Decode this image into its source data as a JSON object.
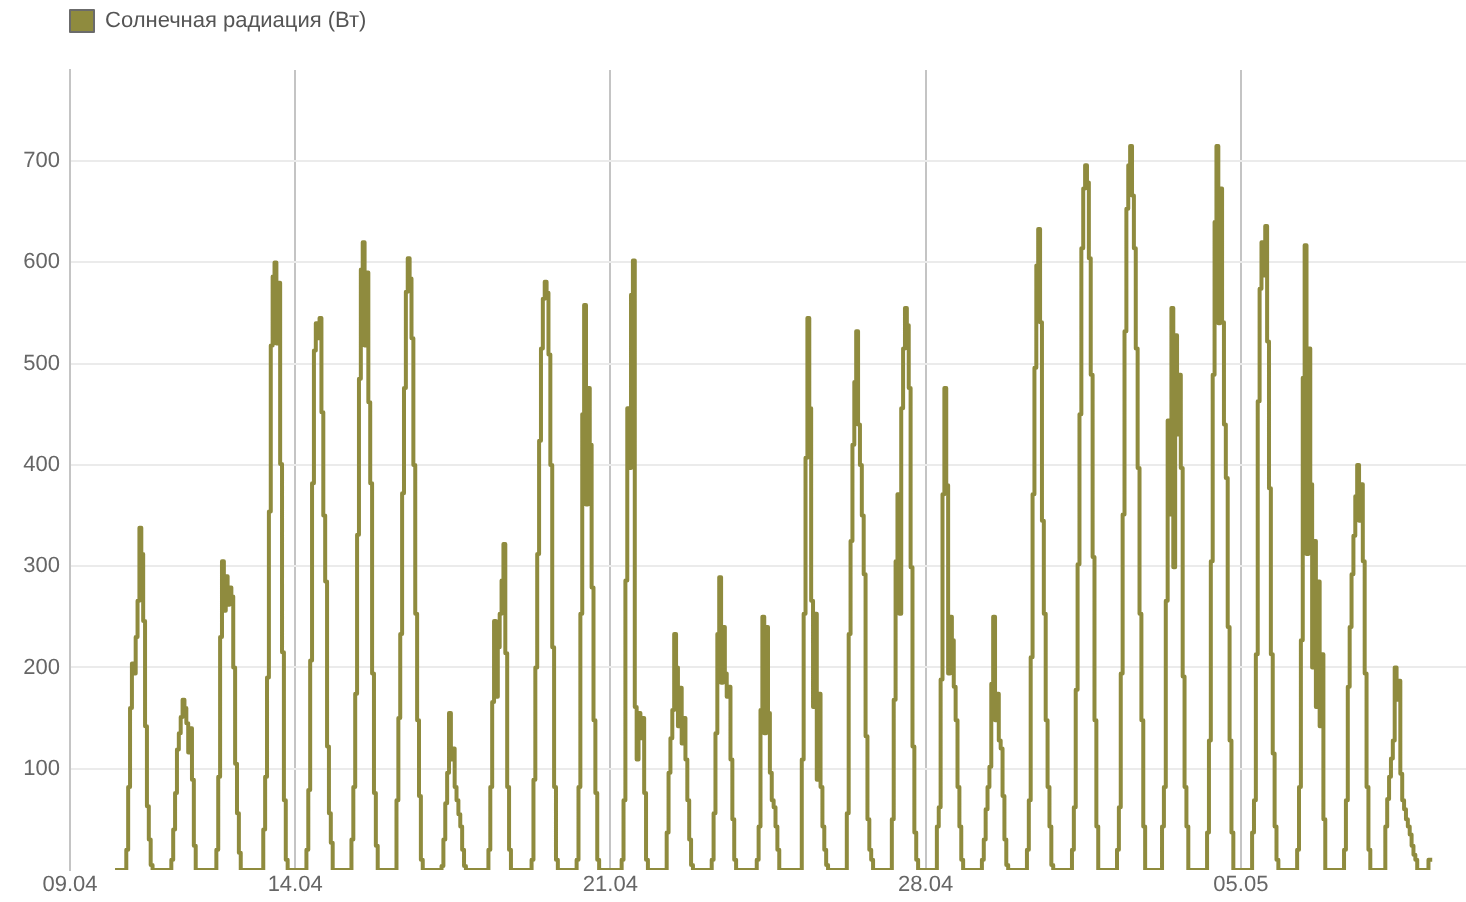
{
  "chart_data": {
    "type": "step",
    "legend": "top left",
    "grid": true,
    "xlim": [
      "--04-09",
      "--05-10"
    ],
    "xticks": [
      {
        "value": "--04-09",
        "label": "09.04"
      },
      {
        "value": "--04-14",
        "label": "14.04"
      },
      {
        "value": "--04-21",
        "label": "21.04"
      },
      {
        "value": "--04-28",
        "label": "28.04"
      },
      {
        "value": "--05-05",
        "label": "05.05"
      }
    ],
    "ylim": [
      0,
      790
    ],
    "yticks": [
      100,
      200,
      300,
      400,
      500,
      600,
      700
    ],
    "series": [
      {
        "name": "Солнечная радиация (Вт)",
        "color": "#8f8b3e",
        "x": [
          "--04-10T00:00",
          "--04-10T05:00",
          "--04-10T06:00",
          "--04-10T07:00",
          "--04-10T08:00",
          "--04-10T09:00",
          "--04-10T10:00",
          "--04-10T11:00",
          "--04-10T12:00",
          "--04-10T13:00",
          "--04-10T14:00",
          "--04-10T15:00",
          "--04-10T16:00",
          "--04-10T17:00",
          "--04-10T18:00",
          "--04-10T19:00",
          "--04-10T20:00",
          "--04-11T05:00",
          "--04-11T06:00",
          "--04-11T07:00",
          "--04-11T08:00",
          "--04-11T09:00",
          "--04-11T10:00",
          "--04-11T11:00",
          "--04-11T12:00",
          "--04-11T13:00",
          "--04-11T14:00",
          "--04-11T15:00",
          "--04-11T16:00",
          "--04-11T17:00",
          "--04-11T18:00",
          "--04-11T19:00",
          "--04-11T20:00",
          "--04-12T05:00",
          "--04-12T06:00",
          "--04-12T07:00",
          "--04-12T08:00",
          "--04-12T09:00",
          "--04-12T10:00",
          "--04-12T11:00",
          "--04-12T12:00",
          "--04-12T13:00",
          "--04-12T14:00",
          "--04-12T15:00",
          "--04-12T16:00",
          "--04-12T17:00",
          "--04-12T18:00",
          "--04-12T19:00",
          "--04-12T20:00",
          "--04-13T05:00",
          "--04-13T06:00",
          "--04-13T07:00",
          "--04-13T08:00",
          "--04-13T09:00",
          "--04-13T10:00",
          "--04-13T11:00",
          "--04-13T12:00",
          "--04-13T13:00",
          "--04-13T14:00",
          "--04-13T15:00",
          "--04-13T16:00",
          "--04-13T17:00",
          "--04-13T18:00",
          "--04-13T19:00",
          "--04-13T20:00",
          "--04-14T05:00",
          "--04-14T06:00",
          "--04-14T07:00",
          "--04-14T08:00",
          "--04-14T09:00",
          "--04-14T10:00",
          "--04-14T11:00",
          "--04-14T12:00",
          "--04-14T13:00",
          "--04-14T14:00",
          "--04-14T15:00",
          "--04-14T16:00",
          "--04-14T17:00",
          "--04-14T18:00",
          "--04-14T19:00",
          "--04-14T20:00",
          "--04-15T05:00",
          "--04-15T06:00",
          "--04-15T07:00",
          "--04-15T08:00",
          "--04-15T09:00",
          "--04-15T10:00",
          "--04-15T11:00",
          "--04-15T12:00",
          "--04-15T13:00",
          "--04-15T14:00",
          "--04-15T15:00",
          "--04-15T16:00",
          "--04-15T17:00",
          "--04-15T18:00",
          "--04-15T19:00",
          "--04-15T20:00",
          "--04-16T05:00",
          "--04-16T06:00",
          "--04-16T07:00",
          "--04-16T08:00",
          "--04-16T09:00",
          "--04-16T10:00",
          "--04-16T11:00",
          "--04-16T12:00",
          "--04-16T13:00",
          "--04-16T14:00",
          "--04-16T15:00",
          "--04-16T16:00",
          "--04-16T17:00",
          "--04-16T18:00",
          "--04-16T19:00",
          "--04-16T20:00",
          "--04-17T05:00",
          "--04-17T06:00",
          "--04-17T07:00",
          "--04-17T08:00",
          "--04-17T09:00",
          "--04-17T10:00",
          "--04-17T11:00",
          "--04-17T12:00",
          "--04-17T13:00",
          "--04-17T14:00",
          "--04-17T15:00",
          "--04-17T16:00",
          "--04-17T17:00",
          "--04-17T18:00",
          "--04-17T19:00",
          "--04-17T20:00",
          "--04-18T05:00",
          "--04-18T06:00",
          "--04-18T07:00",
          "--04-18T08:00",
          "--04-18T09:00",
          "--04-18T10:00",
          "--04-18T11:00",
          "--04-18T12:00",
          "--04-18T13:00",
          "--04-18T14:00",
          "--04-18T15:00",
          "--04-18T16:00",
          "--04-18T17:00",
          "--04-18T18:00",
          "--04-18T19:00",
          "--04-18T20:00",
          "--04-19T05:00",
          "--04-19T06:00",
          "--04-19T07:00",
          "--04-19T08:00",
          "--04-19T09:00",
          "--04-19T10:00",
          "--04-19T11:00",
          "--04-19T12:00",
          "--04-19T13:00",
          "--04-19T14:00",
          "--04-19T15:00",
          "--04-19T16:00",
          "--04-19T17:00",
          "--04-19T18:00",
          "--04-19T19:00",
          "--04-19T20:00",
          "--04-20T05:00",
          "--04-20T06:00",
          "--04-20T07:00",
          "--04-20T08:00",
          "--04-20T09:00",
          "--04-20T10:00",
          "--04-20T11:00",
          "--04-20T12:00",
          "--04-20T13:00",
          "--04-20T14:00",
          "--04-20T15:00",
          "--04-20T16:00",
          "--04-20T17:00",
          "--04-20T18:00",
          "--04-20T19:00",
          "--04-20T20:00",
          "--04-21T05:00",
          "--04-21T06:00",
          "--04-21T07:00",
          "--04-21T08:00",
          "--04-21T09:00",
          "--04-21T10:00",
          "--04-21T11:00",
          "--04-21T12:00",
          "--04-21T13:00",
          "--04-21T14:00",
          "--04-21T15:00",
          "--04-21T16:00",
          "--04-21T17:00",
          "--04-21T18:00",
          "--04-21T19:00",
          "--04-21T20:00",
          "--04-22T05:00",
          "--04-22T06:00",
          "--04-22T07:00",
          "--04-22T08:00",
          "--04-22T09:00",
          "--04-22T10:00",
          "--04-22T11:00",
          "--04-22T12:00",
          "--04-22T13:00",
          "--04-22T14:00",
          "--04-22T15:00",
          "--04-22T16:00",
          "--04-22T17:00",
          "--04-22T18:00",
          "--04-22T19:00",
          "--04-22T20:00",
          "--04-23T05:00",
          "--04-23T06:00",
          "--04-23T07:00",
          "--04-23T08:00",
          "--04-23T09:00",
          "--04-23T10:00",
          "--04-23T11:00",
          "--04-23T12:00",
          "--04-23T13:00",
          "--04-23T14:00",
          "--04-23T15:00",
          "--04-23T16:00",
          "--04-23T17:00",
          "--04-23T18:00",
          "--04-23T19:00",
          "--04-23T20:00",
          "--04-24T05:00",
          "--04-24T06:00",
          "--04-24T07:00",
          "--04-24T08:00",
          "--04-24T09:00",
          "--04-24T10:00",
          "--04-24T11:00",
          "--04-24T12:00",
          "--04-24T13:00",
          "--04-24T14:00",
          "--04-24T15:00",
          "--04-24T16:00",
          "--04-24T17:00",
          "--04-24T18:00",
          "--04-24T19:00",
          "--04-24T20:00",
          "--04-25T05:00",
          "--04-25T06:00",
          "--04-25T07:00",
          "--04-25T08:00",
          "--04-25T09:00",
          "--04-25T10:00",
          "--04-25T11:00",
          "--04-25T12:00",
          "--04-25T13:00",
          "--04-25T14:00",
          "--04-25T15:00",
          "--04-25T16:00",
          "--04-25T17:00",
          "--04-25T18:00",
          "--04-25T19:00",
          "--04-25T20:00",
          "--04-26T05:00",
          "--04-26T06:00",
          "--04-26T07:00",
          "--04-26T08:00",
          "--04-26T09:00",
          "--04-26T10:00",
          "--04-26T11:00",
          "--04-26T12:00",
          "--04-26T13:00",
          "--04-26T14:00",
          "--04-26T15:00",
          "--04-26T16:00",
          "--04-26T17:00",
          "--04-26T18:00",
          "--04-26T19:00",
          "--04-26T20:00",
          "--04-27T05:00",
          "--04-27T06:00",
          "--04-27T07:00",
          "--04-27T08:00",
          "--04-27T09:00",
          "--04-27T10:00",
          "--04-27T11:00",
          "--04-27T12:00",
          "--04-27T13:00",
          "--04-27T14:00",
          "--04-27T15:00",
          "--04-27T16:00",
          "--04-27T17:00",
          "--04-27T18:00",
          "--04-27T19:00",
          "--04-27T20:00",
          "--04-28T05:00",
          "--04-28T06:00",
          "--04-28T07:00",
          "--04-28T08:00",
          "--04-28T09:00",
          "--04-28T10:00",
          "--04-28T11:00",
          "--04-28T12:00",
          "--04-28T13:00",
          "--04-28T14:00",
          "--04-28T15:00",
          "--04-28T16:00",
          "--04-28T17:00",
          "--04-28T18:00",
          "--04-28T19:00",
          "--04-28T20:00",
          "--04-29T05:00",
          "--04-29T06:00",
          "--04-29T07:00",
          "--04-29T08:00",
          "--04-29T09:00",
          "--04-29T10:00",
          "--04-29T11:00",
          "--04-29T12:00",
          "--04-29T13:00",
          "--04-29T14:00",
          "--04-29T15:00",
          "--04-29T16:00",
          "--04-29T17:00",
          "--04-29T18:00",
          "--04-29T19:00",
          "--04-29T20:00",
          "--04-30T05:00",
          "--04-30T06:00",
          "--04-30T07:00",
          "--04-30T08:00",
          "--04-30T09:00",
          "--04-30T10:00",
          "--04-30T11:00",
          "--04-30T12:00",
          "--04-30T13:00",
          "--04-30T14:00",
          "--04-30T15:00",
          "--04-30T16:00",
          "--04-30T17:00",
          "--04-30T18:00",
          "--04-30T19:00",
          "--04-30T20:00",
          "--05-01T05:00",
          "--05-01T06:00",
          "--05-01T07:00",
          "--05-01T08:00",
          "--05-01T09:00",
          "--05-01T10:00",
          "--05-01T11:00",
          "--05-01T12:00",
          "--05-01T13:00",
          "--05-01T14:00",
          "--05-01T15:00",
          "--05-01T16:00",
          "--05-01T17:00",
          "--05-01T18:00",
          "--05-01T19:00",
          "--05-01T20:00",
          "--05-02T05:00",
          "--05-02T06:00",
          "--05-02T07:00",
          "--05-02T08:00",
          "--05-02T09:00",
          "--05-02T10:00",
          "--05-02T11:00",
          "--05-02T12:00",
          "--05-02T13:00",
          "--05-02T14:00",
          "--05-02T15:00",
          "--05-02T16:00",
          "--05-02T17:00",
          "--05-02T18:00",
          "--05-02T19:00",
          "--05-02T20:00",
          "--05-02T21:00",
          "--05-03T05:00",
          "--05-03T06:00",
          "--05-03T07:00",
          "--05-03T08:00",
          "--05-03T09:00",
          "--05-03T10:00",
          "--05-03T11:00",
          "--05-03T12:00",
          "--05-03T13:00",
          "--05-03T14:00",
          "--05-03T15:00",
          "--05-03T16:00",
          "--05-03T17:00",
          "--05-03T18:00",
          "--05-03T19:00",
          "--05-03T20:00",
          "--05-04T05:00",
          "--05-04T06:00",
          "--05-04T07:00",
          "--05-04T08:00",
          "--05-04T09:00",
          "--05-04T10:00",
          "--05-04T11:00",
          "--05-04T12:00",
          "--05-04T13:00",
          "--05-04T14:00",
          "--05-04T15:00",
          "--05-04T16:00",
          "--05-04T17:00",
          "--05-04T18:00",
          "--05-04T19:00",
          "--05-04T20:00",
          "--05-05T05:00",
          "--05-05T06:00",
          "--05-05T07:00",
          "--05-05T08:00",
          "--05-05T09:00",
          "--05-05T10:00",
          "--05-05T11:00",
          "--05-05T12:00",
          "--05-05T13:00",
          "--05-05T14:00",
          "--05-05T15:00",
          "--05-05T16:00",
          "--05-05T17:00",
          "--05-05T18:00",
          "--05-05T19:00",
          "--05-05T20:00",
          "--05-06T05:00",
          "--05-06T06:00",
          "--05-06T07:00",
          "--05-06T08:00",
          "--05-06T09:00",
          "--05-06T10:00",
          "--05-06T11:00",
          "--05-06T12:00",
          "--05-06T13:00",
          "--05-06T14:00",
          "--05-06T15:00",
          "--05-06T16:00",
          "--05-06T17:00",
          "--05-06T18:00",
          "--05-06T19:00",
          "--05-06T20:00",
          "--05-06T21:00",
          "--05-07T05:00",
          "--05-07T06:00",
          "--05-07T07:00",
          "--05-07T08:00",
          "--05-07T09:00",
          "--05-07T10:00",
          "--05-07T11:00",
          "--05-07T12:00",
          "--05-07T13:00",
          "--05-07T14:00",
          "--05-07T15:00",
          "--05-07T16:00",
          "--05-07T17:00",
          "--05-07T18:00",
          "--05-07T19:00",
          "--05-07T20:00",
          "--05-07T21:00",
          "--05-08T04:00",
          "--05-08T05:00",
          "--05-08T06:00",
          "--05-08T07:00",
          "--05-08T08:00",
          "--05-08T09:00",
          "--05-08T10:00",
          "--05-08T11:00",
          "--05-08T12:00",
          "--05-08T13:00",
          "--05-08T14:00",
          "--05-08T15:00",
          "--05-08T16:00",
          "--05-08T17:00",
          "--05-08T18:00",
          "--05-08T19:00",
          "--05-08T20:00",
          "--05-08T21:00",
          "--05-08T22:00",
          "--05-09T04:00",
          "--05-09T06:00"
        ],
        "values": [
          0,
          0,
          20,
          82,
          160,
          204,
          194,
          230,
          266,
          338,
          312,
          246,
          142,
          63,
          30,
          5,
          0,
          0,
          10,
          40,
          76,
          119,
          135,
          151,
          168,
          160,
          145,
          116,
          140,
          89,
          24,
          0,
          0,
          0,
          20,
          92,
          230,
          305,
          256,
          290,
          262,
          279,
          270,
          200,
          105,
          56,
          17,
          0,
          0,
          0,
          0,
          40,
          92,
          190,
          354,
          518,
          586,
          600,
          520,
          580,
          401,
          215,
          69,
          10,
          0,
          0,
          20,
          79,
          207,
          382,
          513,
          540,
          525,
          545,
          452,
          350,
          285,
          122,
          56,
          27,
          0,
          0,
          30,
          82,
          174,
          331,
          485,
          593,
          620,
          518,
          590,
          462,
          382,
          194,
          76,
          24,
          0,
          0,
          69,
          150,
          233,
          372,
          476,
          571,
          604,
          584,
          525,
          400,
          253,
          148,
          73,
          10,
          0,
          0,
          4,
          30,
          66,
          96,
          155,
          109,
          120,
          82,
          69,
          55,
          43,
          20,
          4,
          0,
          0,
          0,
          0,
          20,
          82,
          166,
          246,
          171,
          220,
          253,
          286,
          322,
          214,
          82,
          20,
          0,
          0,
          0,
          10,
          89,
          200,
          312,
          424,
          515,
          564,
          581,
          570,
          509,
          400,
          220,
          82,
          10,
          0,
          0,
          10,
          82,
          253,
          450,
          558,
          361,
          476,
          420,
          279,
          148,
          76,
          10,
          0,
          0,
          0,
          0,
          10,
          69,
          286,
          456,
          397,
          568,
          602,
          161,
          109,
          155,
          130,
          150,
          76,
          10,
          0,
          0,
          37,
          96,
          130,
          158,
          233,
          200,
          142,
          180,
          125,
          150,
          109,
          69,
          30,
          5,
          0,
          0,
          10,
          56,
          135,
          233,
          289,
          185,
          240,
          194,
          171,
          181,
          109,
          50,
          10,
          0,
          0,
          0,
          10,
          43,
          158,
          250,
          135,
          240,
          155,
          96,
          69,
          62,
          43,
          20,
          0,
          0,
          0,
          0,
          109,
          253,
          407,
          545,
          456,
          266,
          161,
          253,
          89,
          174,
          82,
          43,
          20,
          5,
          0,
          0,
          56,
          233,
          325,
          420,
          482,
          532,
          440,
          400,
          350,
          292,
          132,
          50,
          20,
          10,
          0,
          0,
          50,
          168,
          305,
          371,
          253,
          456,
          515,
          555,
          538,
          476,
          299,
          122,
          37,
          10,
          0,
          0,
          43,
          62,
          188,
          371,
          476,
          380,
          194,
          250,
          227,
          181,
          148,
          82,
          43,
          10,
          0,
          0,
          10,
          30,
          60,
          82,
          102,
          184,
          250,
          148,
          174,
          128,
          120,
          73,
          30,
          5,
          0,
          0,
          20,
          69,
          210,
          371,
          496,
          597,
          633,
          541,
          345,
          253,
          148,
          82,
          43,
          5,
          0,
          0,
          20,
          62,
          178,
          302,
          450,
          614,
          673,
          696,
          679,
          604,
          489,
          309,
          148,
          43,
          0,
          0,
          20,
          62,
          194,
          351,
          532,
          653,
          696,
          715,
          666,
          614,
          515,
          397,
          253,
          148,
          43,
          0,
          0,
          43,
          82,
          266,
          444,
          351,
          555,
          299,
          528,
          430,
          489,
          397,
          191,
          82,
          43,
          0,
          0,
          37,
          128,
          305,
          489,
          640,
          715,
          540,
          673,
          541,
          440,
          387,
          240,
          128,
          37,
          0,
          0,
          37,
          69,
          213,
          463,
          574,
          620,
          587,
          636,
          522,
          377,
          213,
          115,
          43,
          10,
          0,
          0,
          20,
          82,
          227,
          486,
          617,
          312,
          515,
          381,
          200,
          325,
          161,
          285,
          142,
          213,
          50,
          0,
          0,
          0,
          20,
          69,
          181,
          240,
          292,
          330,
          369,
          400,
          345,
          381,
          305,
          194,
          82,
          20,
          0,
          0,
          43,
          70,
          92,
          110,
          128,
          200,
          168,
          187,
          95,
          69,
          60,
          50,
          43,
          35,
          24,
          15,
          10,
          0,
          10,
          10
        ]
      }
    ]
  }
}
